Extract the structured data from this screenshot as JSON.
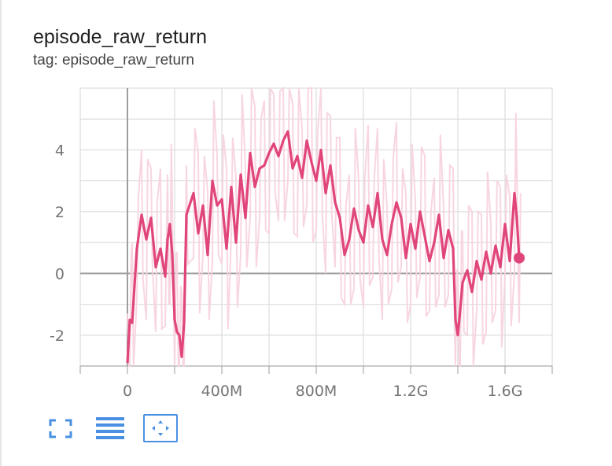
{
  "card": {
    "title": "episode_raw_return",
    "subtitle": "tag: episode_raw_return"
  },
  "toolbar": {
    "buttons": [
      {
        "icon": "fullscreen-icon",
        "active": false
      },
      {
        "icon": "toggle-log-scale-icon",
        "active": false
      },
      {
        "icon": "fit-domain-icon",
        "active": true
      }
    ]
  },
  "colors": {
    "line": "#e0457b",
    "raw_line": "#f7d2de",
    "axis": "#9e9e9e",
    "grid": "#dddddd",
    "icon": "#4a90e2"
  },
  "chart_data": {
    "type": "line",
    "xlim": [
      -200000000,
      1800000000
    ],
    "ylim": [
      -3,
      6
    ],
    "x_ticks": [
      0,
      400000000,
      800000000,
      1200000000,
      1600000000
    ],
    "x_tick_labels": [
      "0",
      "400M",
      "800M",
      "1.2G",
      "1.6G"
    ],
    "y_ticks": [
      -2,
      0,
      2,
      4
    ],
    "y_tick_labels": [
      "-2",
      "0",
      "2",
      "4"
    ],
    "grid": true,
    "series": [
      {
        "x": [
          0,
          10000000,
          20000000,
          40000000,
          60000000,
          80000000,
          100000000,
          120000000,
          140000000,
          160000000,
          170000000,
          180000000,
          190000000,
          200000000,
          210000000,
          220000000,
          230000000,
          240000000,
          250000000,
          280000000,
          300000000,
          320000000,
          340000000,
          360000000,
          380000000,
          400000000,
          420000000,
          440000000,
          460000000,
          480000000,
          500000000,
          520000000,
          540000000,
          560000000,
          580000000,
          600000000,
          620000000,
          640000000,
          660000000,
          680000000,
          700000000,
          720000000,
          740000000,
          760000000,
          780000000,
          800000000,
          820000000,
          840000000,
          860000000,
          880000000,
          900000000,
          920000000,
          940000000,
          960000000,
          980000000,
          1000000000,
          1020000000,
          1040000000,
          1060000000,
          1080000000,
          1100000000,
          1120000000,
          1140000000,
          1160000000,
          1180000000,
          1200000000,
          1220000000,
          1240000000,
          1260000000,
          1280000000,
          1300000000,
          1320000000,
          1340000000,
          1360000000,
          1380000000,
          1390000000,
          1400000000,
          1410000000,
          1420000000,
          1440000000,
          1460000000,
          1480000000,
          1500000000,
          1520000000,
          1540000000,
          1560000000,
          1580000000,
          1600000000,
          1620000000,
          1640000000,
          1650000000,
          1660000000
        ],
        "y": [
          -2.9,
          -1.5,
          -1.6,
          0.8,
          1.9,
          1.1,
          1.8,
          0.2,
          0.8,
          -0.1,
          1.1,
          1.6,
          0.6,
          -1.5,
          -1.9,
          -2.0,
          -2.7,
          -1.6,
          1.9,
          2.6,
          1.3,
          2.2,
          0.6,
          3.0,
          2.2,
          2.4,
          0.8,
          2.8,
          1.0,
          3.2,
          1.8,
          3.9,
          2.8,
          3.4,
          3.5,
          3.9,
          4.2,
          3.8,
          4.3,
          4.6,
          3.4,
          3.8,
          3.1,
          4.3,
          3.6,
          3.0,
          4.0,
          2.6,
          3.5,
          2.3,
          1.8,
          0.6,
          1.1,
          2.1,
          1.4,
          1.0,
          2.2,
          1.5,
          2.6,
          1.1,
          0.6,
          1.6,
          2.3,
          1.8,
          0.5,
          1.6,
          0.8,
          2.0,
          1.2,
          0.4,
          1.0,
          1.9,
          0.5,
          1.4,
          0.8,
          -1.5,
          -2.0,
          -1.2,
          -0.3,
          0.1,
          -0.6,
          0.4,
          -0.2,
          0.7,
          0.0,
          0.9,
          0.2,
          1.6,
          0.4,
          2.6,
          1.8,
          0.5
        ]
      }
    ]
  }
}
